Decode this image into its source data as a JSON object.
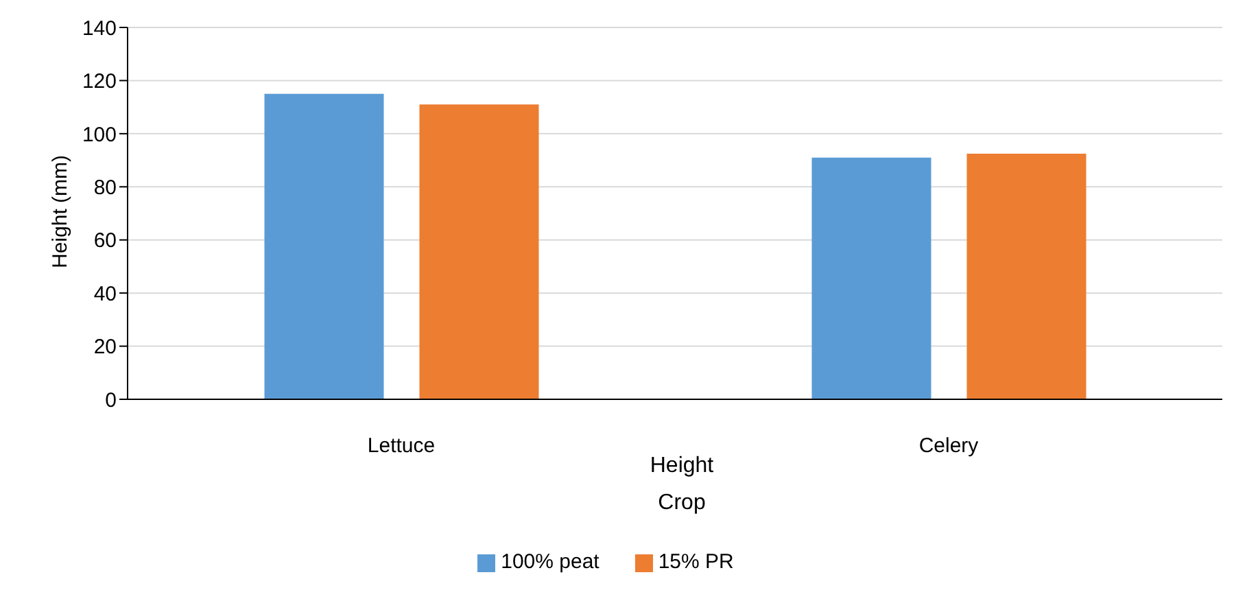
{
  "chart_data": {
    "type": "bar",
    "ylabel": "Height (mm)",
    "xlabel": "Crop",
    "annotations": [
      "Height"
    ],
    "categories": [
      "Lettuce",
      "Celery"
    ],
    "series": [
      {
        "name": "100% peat",
        "color": "#5b9bd5",
        "values": [
          115,
          91
        ]
      },
      {
        "name": "15% PR",
        "color": "#ed7d31",
        "values": [
          111,
          92.5
        ]
      }
    ],
    "ylim": [
      0,
      140
    ],
    "yticks": [
      0,
      20,
      40,
      60,
      80,
      100,
      120,
      140
    ],
    "grid": "y",
    "legend": "bottom"
  }
}
